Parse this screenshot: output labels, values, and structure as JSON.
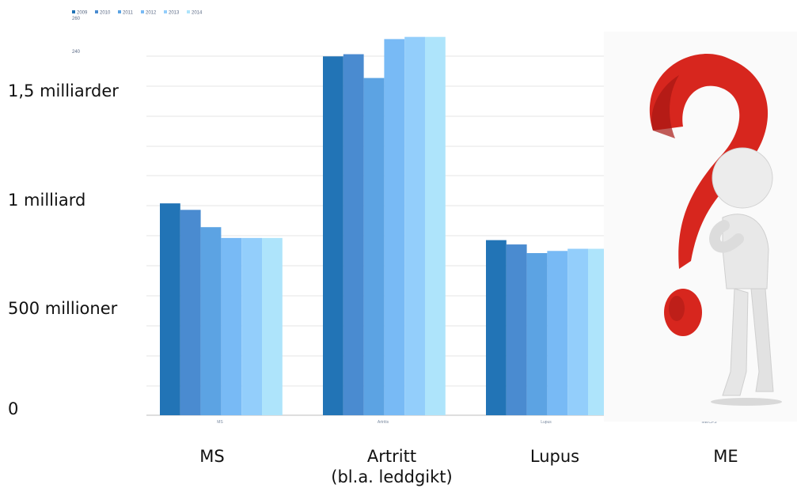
{
  "chart_data": {
    "type": "bar",
    "categories": [
      "MS",
      "Artritt",
      "Lupus",
      "ME"
    ],
    "category_labels": [
      "MS",
      "Artritt\n(bl.a. leddgikt)",
      "Lupus",
      "ME"
    ],
    "inner_category_labels": [
      "MS",
      "Artritis",
      "Lupus",
      "ME/CFS"
    ],
    "series": [
      {
        "name": "2009",
        "values": [
          0.98,
          1.66,
          0.81,
          null
        ]
      },
      {
        "name": "2010",
        "values": [
          0.95,
          1.67,
          0.79,
          null
        ]
      },
      {
        "name": "2011",
        "values": [
          0.87,
          1.56,
          0.75,
          null
        ]
      },
      {
        "name": "2012",
        "values": [
          0.82,
          1.74,
          0.76,
          null
        ]
      },
      {
        "name": "2013",
        "values": [
          0.82,
          1.75,
          0.77,
          null
        ]
      },
      {
        "name": "2014",
        "values": [
          0.82,
          1.75,
          0.77,
          null
        ]
      }
    ],
    "y_tick_values": [
      0,
      0.5,
      1,
      1.5
    ],
    "y_tick_labels": [
      "0",
      "500 millioner",
      "1 milliard",
      "1,5 milliarder"
    ],
    "legend_small_values": [
      "260",
      "240"
    ],
    "ylim": [
      0,
      1.8
    ],
    "grid": true,
    "legend_position": "top-left",
    "colors": [
      "#2274b6",
      "#4a8bd0",
      "#5ca3e3",
      "#78baf5",
      "#93cefb",
      "#aee4fb"
    ]
  },
  "image": {
    "icon": "question-mark-figure-icon"
  }
}
